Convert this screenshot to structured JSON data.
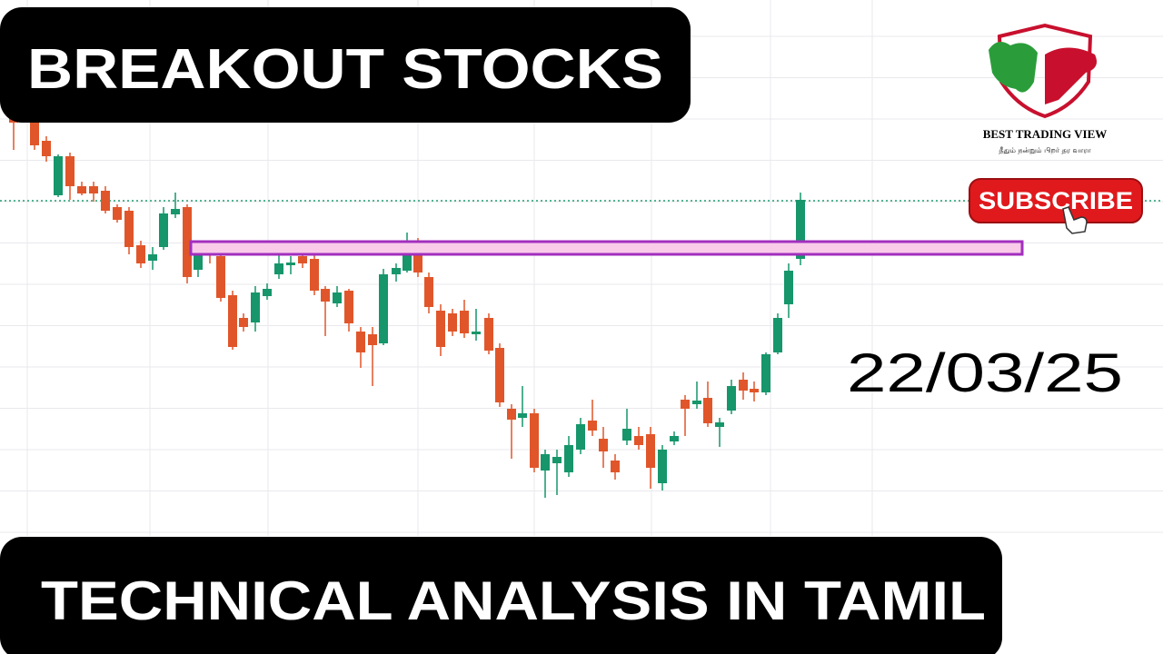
{
  "header": {
    "title": "BREAKOUT STOCKS"
  },
  "footer": {
    "title": "TECHNICAL ANALYSIS IN TAMIL"
  },
  "date": "22/03/25",
  "logo": {
    "name": "BEST TRADING VIEW",
    "tagline": "தீதும் நன்றும் பிறர் தர வாரா"
  },
  "subscribe": "SUBSCRIBE"
}
